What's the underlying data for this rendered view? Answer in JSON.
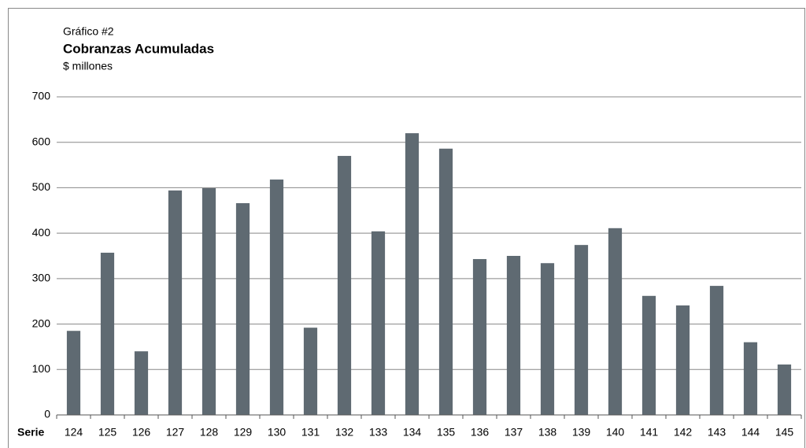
{
  "chart_data": {
    "type": "bar",
    "subtitle_top": "Gráfico #2",
    "title": "Cobranzas Acumuladas",
    "unit_label": "$ millones",
    "x_label": "Serie",
    "categories": [
      "124",
      "125",
      "126",
      "127",
      "128",
      "129",
      "130",
      "131",
      "132",
      "133",
      "134",
      "135",
      "136",
      "137",
      "138",
      "139",
      "140",
      "141",
      "142",
      "143",
      "144",
      "145"
    ],
    "values": [
      185,
      357,
      140,
      494,
      499,
      466,
      518,
      192,
      570,
      404,
      620,
      586,
      343,
      350,
      334,
      374,
      411,
      262,
      241,
      284,
      160,
      111
    ],
    "color": "#5f6a72",
    "ylim": [
      0,
      700
    ],
    "yticks": [
      0,
      100,
      200,
      300,
      400,
      500,
      600,
      700
    ],
    "grid": true
  }
}
